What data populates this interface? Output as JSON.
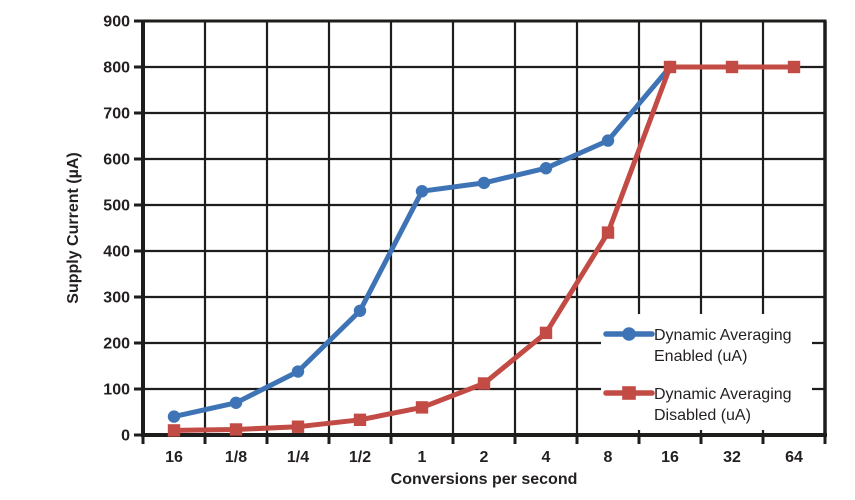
{
  "chart_data": {
    "type": "line",
    "title": "",
    "xlabel": "Conversions per second",
    "ylabel": "Supply Current (µA)",
    "ylim": [
      0,
      900
    ],
    "ytick_step": 100,
    "ytick_labels": [
      "0",
      "100",
      "200",
      "300",
      "400",
      "500",
      "600",
      "700",
      "800",
      "900"
    ],
    "categories": [
      "16",
      "1/8",
      "1/4",
      "1/2",
      "1",
      "2",
      "4",
      "8",
      "16",
      "32",
      "64"
    ],
    "grid": true,
    "legend_position": "inside-right",
    "series": [
      {
        "name": "Dynamic Averaging Enabled (uA)",
        "legend_lines": [
          "Dynamic Averaging",
          "Enabled (uA)"
        ],
        "color": "#3e74b5",
        "marker": "circle",
        "values": [
          40,
          70,
          138,
          270,
          530,
          548,
          580,
          640,
          800,
          null,
          null
        ]
      },
      {
        "name": "Dynamic Averaging Disabled  (uA)",
        "legend_lines": [
          "Dynamic Averaging",
          "Disabled  (uA)"
        ],
        "color": "#c34b45",
        "marker": "square",
        "values": [
          10,
          12,
          18,
          33,
          60,
          112,
          222,
          440,
          800,
          800,
          800
        ]
      }
    ]
  },
  "colors": {
    "background": "#ffffff",
    "grid": "#1d1d1b",
    "axis": "#1d1d1b",
    "text": "#231f20",
    "legend_background": "#ffffff"
  }
}
